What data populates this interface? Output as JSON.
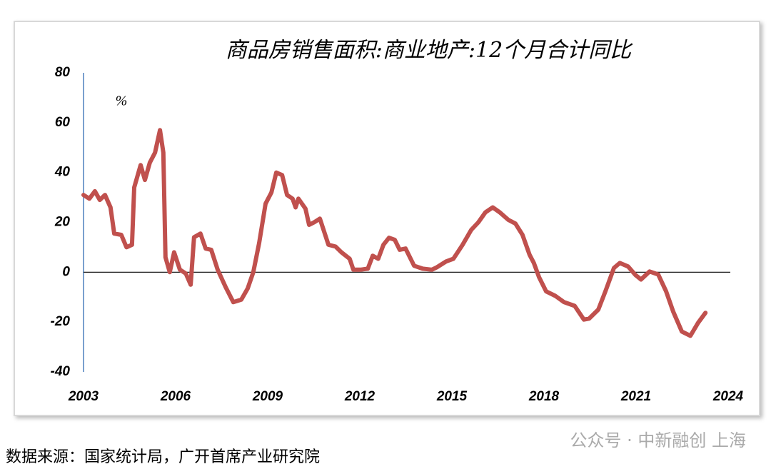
{
  "chart_data": {
    "type": "line",
    "title": "商品房销售面积:商业地产:12个月合计同比",
    "y_label": "%",
    "x": [
      2003.0,
      2003.19,
      2003.37,
      2003.53,
      2003.7,
      2003.88,
      2004.0,
      2004.23,
      2004.4,
      2004.58,
      2004.65,
      2004.86,
      2005.0,
      2005.16,
      2005.33,
      2005.49,
      2005.6,
      2005.67,
      2005.81,
      2005.95,
      2006.14,
      2006.33,
      2006.49,
      2006.6,
      2006.81,
      2006.98,
      2007.16,
      2007.37,
      2007.63,
      2007.88,
      2008.14,
      2008.35,
      2008.53,
      2008.72,
      2008.93,
      2009.12,
      2009.28,
      2009.47,
      2009.63,
      2009.81,
      2009.91,
      2010.0,
      2010.23,
      2010.35,
      2010.51,
      2010.7,
      2010.98,
      2011.21,
      2011.4,
      2011.67,
      2011.79,
      2012.02,
      2012.26,
      2012.42,
      2012.6,
      2012.77,
      2012.95,
      2013.14,
      2013.3,
      2013.49,
      2013.77,
      2014.05,
      2014.35,
      2014.51,
      2014.81,
      2015.05,
      2015.35,
      2015.63,
      2015.86,
      2016.09,
      2016.33,
      2016.56,
      2016.84,
      2017.07,
      2017.3,
      2017.53,
      2017.67,
      2017.84,
      2018.07,
      2018.37,
      2018.65,
      2019.0,
      2019.3,
      2019.47,
      2019.77,
      2020.0,
      2020.28,
      2020.47,
      2020.74,
      2020.98,
      2021.16,
      2021.44,
      2021.72,
      2021.98,
      2022.21,
      2022.49,
      2022.77,
      2023.02,
      2023.26
    ],
    "series": [
      {
        "color": "#c0504d",
        "values": [
          31,
          29.5,
          32.5,
          29,
          31,
          26,
          15.5,
          15,
          10,
          11,
          34,
          43,
          37,
          44,
          48,
          57,
          48,
          6,
          0,
          8,
          1,
          -0.5,
          -5,
          14,
          15.5,
          9.5,
          9,
          1,
          -6,
          -12,
          -11,
          -6.5,
          0,
          11.7,
          27.5,
          32,
          40,
          39,
          31,
          29.5,
          26,
          29.5,
          25.5,
          19,
          20,
          21.5,
          11,
          10.3,
          8,
          5.4,
          1,
          1,
          1.4,
          6.6,
          5.4,
          11,
          13.8,
          13,
          9,
          9.5,
          2.6,
          1.4,
          1,
          2,
          4.3,
          5.4,
          11,
          17,
          20,
          24,
          26,
          24,
          21,
          19.5,
          15,
          7,
          3.7,
          -2,
          -7.7,
          -9.5,
          -12,
          -13.5,
          -19,
          -18.6,
          -15,
          -7.7,
          1.7,
          3.7,
          2.3,
          -1.1,
          -2.9,
          0.3,
          -0.9,
          -7.7,
          -15.8,
          -23.8,
          -25.5,
          -20.3,
          -16.3
        ]
      }
    ],
    "xlim": [
      2003,
      2024
    ],
    "xticks": [
      2003,
      2006,
      2009,
      2012,
      2015,
      2018,
      2021,
      2024
    ],
    "ylim": [
      -40,
      80
    ],
    "yticks": [
      -40,
      -20,
      0,
      20,
      40,
      60,
      80
    ]
  },
  "source": "数据来源：国家统计局，广开首席产业研究院",
  "watermark": "公众号 · 中新融创 上海"
}
